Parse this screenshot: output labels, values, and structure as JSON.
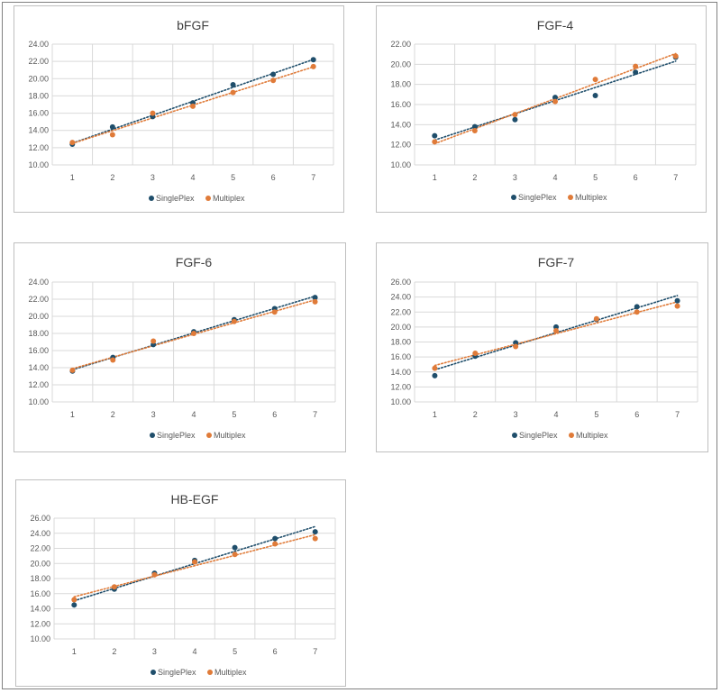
{
  "colors": {
    "singleplex": "#1f4e6b",
    "multiplex": "#e07b39",
    "grid": "#d9d9d9"
  },
  "chart_data": [
    {
      "type": "scatter",
      "title": "bFGF",
      "x": [
        1,
        2,
        3,
        4,
        5,
        6,
        7
      ],
      "ylim": [
        10,
        24
      ],
      "yticks": [
        "10.00",
        "12.00",
        "14.00",
        "16.00",
        "18.00",
        "20.00",
        "22.00",
        "24.00"
      ],
      "xticks": [
        "1",
        "2",
        "3",
        "4",
        "5",
        "6",
        "7"
      ],
      "grid": true,
      "legend": "bottom",
      "trendline": "linear-dotted",
      "series": [
        {
          "name": "SinglePlex",
          "values": [
            12.4,
            14.4,
            15.6,
            17.2,
            19.3,
            20.5,
            22.2
          ]
        },
        {
          "name": "Multiplex",
          "values": [
            12.6,
            13.5,
            16.0,
            16.8,
            18.4,
            19.8,
            21.4
          ]
        }
      ]
    },
    {
      "type": "scatter",
      "title": "FGF-4",
      "x": [
        1,
        2,
        3,
        4,
        5,
        6,
        7
      ],
      "ylim": [
        10,
        22
      ],
      "yticks": [
        "10.00",
        "12.00",
        "14.00",
        "16.00",
        "18.00",
        "20.00",
        "22.00"
      ],
      "xticks": [
        "1",
        "2",
        "3",
        "4",
        "5",
        "6",
        "7"
      ],
      "grid": true,
      "legend": "bottom",
      "trendline": "linear-dotted",
      "series": [
        {
          "name": "SinglePlex",
          "values": [
            12.9,
            13.8,
            14.5,
            16.7,
            16.9,
            19.2,
            20.7
          ]
        },
        {
          "name": "Multiplex",
          "values": [
            12.3,
            13.4,
            15.0,
            16.3,
            18.5,
            19.8,
            20.8
          ]
        }
      ]
    },
    {
      "type": "scatter",
      "title": "FGF-6",
      "x": [
        1,
        2,
        3,
        4,
        5,
        6,
        7
      ],
      "ylim": [
        10,
        24
      ],
      "yticks": [
        "10.00",
        "12.00",
        "14.00",
        "16.00",
        "18.00",
        "20.00",
        "22.00",
        "24.00"
      ],
      "xticks": [
        "1",
        "2",
        "3",
        "4",
        "5",
        "6",
        "7"
      ],
      "grid": true,
      "legend": "bottom",
      "trendline": "linear-dotted",
      "series": [
        {
          "name": "SinglePlex",
          "values": [
            13.6,
            15.2,
            16.7,
            18.2,
            19.6,
            20.9,
            22.2
          ]
        },
        {
          "name": "Multiplex",
          "values": [
            13.7,
            14.9,
            17.1,
            18.0,
            19.4,
            20.5,
            21.7
          ]
        }
      ]
    },
    {
      "type": "scatter",
      "title": "FGF-7",
      "x": [
        1,
        2,
        3,
        4,
        5,
        6,
        7
      ],
      "ylim": [
        10,
        26
      ],
      "yticks": [
        "10.00",
        "12.00",
        "14.00",
        "16.00",
        "18.00",
        "20.00",
        "22.00",
        "24.00",
        "26.00"
      ],
      "xticks": [
        "1",
        "2",
        "3",
        "4",
        "5",
        "6",
        "7"
      ],
      "grid": true,
      "legend": "bottom",
      "trendline": "linear-dotted",
      "series": [
        {
          "name": "SinglePlex",
          "values": [
            13.5,
            16.1,
            17.9,
            20.0,
            21.0,
            22.7,
            23.5
          ]
        },
        {
          "name": "Multiplex",
          "values": [
            14.5,
            16.5,
            17.4,
            19.5,
            21.1,
            22.0,
            22.8
          ]
        }
      ]
    },
    {
      "type": "scatter",
      "title": "HB-EGF",
      "x": [
        1,
        2,
        3,
        4,
        5,
        6,
        7
      ],
      "ylim": [
        10,
        26
      ],
      "yticks": [
        "10.00",
        "12.00",
        "14.00",
        "16.00",
        "18.00",
        "20.00",
        "22.00",
        "24.00",
        "26.00"
      ],
      "xticks": [
        "1",
        "2",
        "3",
        "4",
        "5",
        "6",
        "7"
      ],
      "grid": true,
      "legend": "bottom",
      "trendline": "linear-dotted",
      "series": [
        {
          "name": "SinglePlex",
          "values": [
            14.5,
            16.6,
            18.7,
            20.4,
            22.1,
            23.3,
            24.2
          ]
        },
        {
          "name": "Multiplex",
          "values": [
            15.2,
            16.9,
            18.5,
            20.2,
            21.2,
            22.6,
            23.3
          ]
        }
      ]
    }
  ]
}
